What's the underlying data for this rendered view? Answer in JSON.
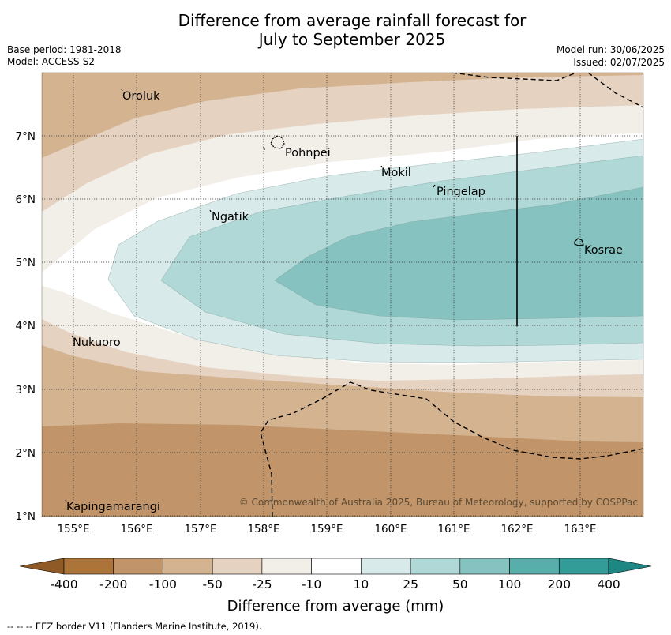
{
  "title": {
    "line1": "Difference from average rainfall forecast for",
    "line2": "July to September 2025"
  },
  "meta": {
    "base_period": "Base period: 1981-2018",
    "model": "Model: ACCESS-S2",
    "model_run": "Model run: 30/06/2025",
    "issued": "Issued: 02/07/2025"
  },
  "map": {
    "lon_labels": [
      "155°E",
      "156°E",
      "157°E",
      "158°E",
      "159°E",
      "160°E",
      "161°E",
      "162°E",
      "163°E"
    ],
    "lat_labels": [
      "1°N",
      "2°N",
      "3°N",
      "4°N",
      "5°N",
      "6°N",
      "7°N"
    ],
    "places": {
      "oroluk": "Oroluk",
      "pohnpei": "Pohnpei",
      "mokil": "Mokil",
      "pingelap": "Pingelap",
      "ngatik": "Ngatik",
      "kosrae": "Kosrae",
      "nukuoro": "Nukuoro",
      "kapingamarangi": "Kapingamarangi"
    },
    "copyright": "© Commonwealth of Australia 2025, Bureau of Meteorology, supported by COSPPac"
  },
  "colorbar": {
    "ticks": [
      "-400",
      "-200",
      "-100",
      "-50",
      "-25",
      "-10",
      "10",
      "25",
      "50",
      "100",
      "200",
      "400"
    ],
    "colors": [
      "#ac7438",
      "#c19569",
      "#d4b391",
      "#e5d2c0",
      "#f2eee8",
      "#ffffff",
      "#d8ebea",
      "#afd8d6",
      "#85c2c0",
      "#57aeaa",
      "#339b98"
    ],
    "extend_low_color": "#8f5a26",
    "extend_high_color": "#1e8783",
    "label": "Difference from average (mm)"
  },
  "footnote": "--  --  -- EEZ border V11 (Flanders Marine Institute, 2019)."
}
